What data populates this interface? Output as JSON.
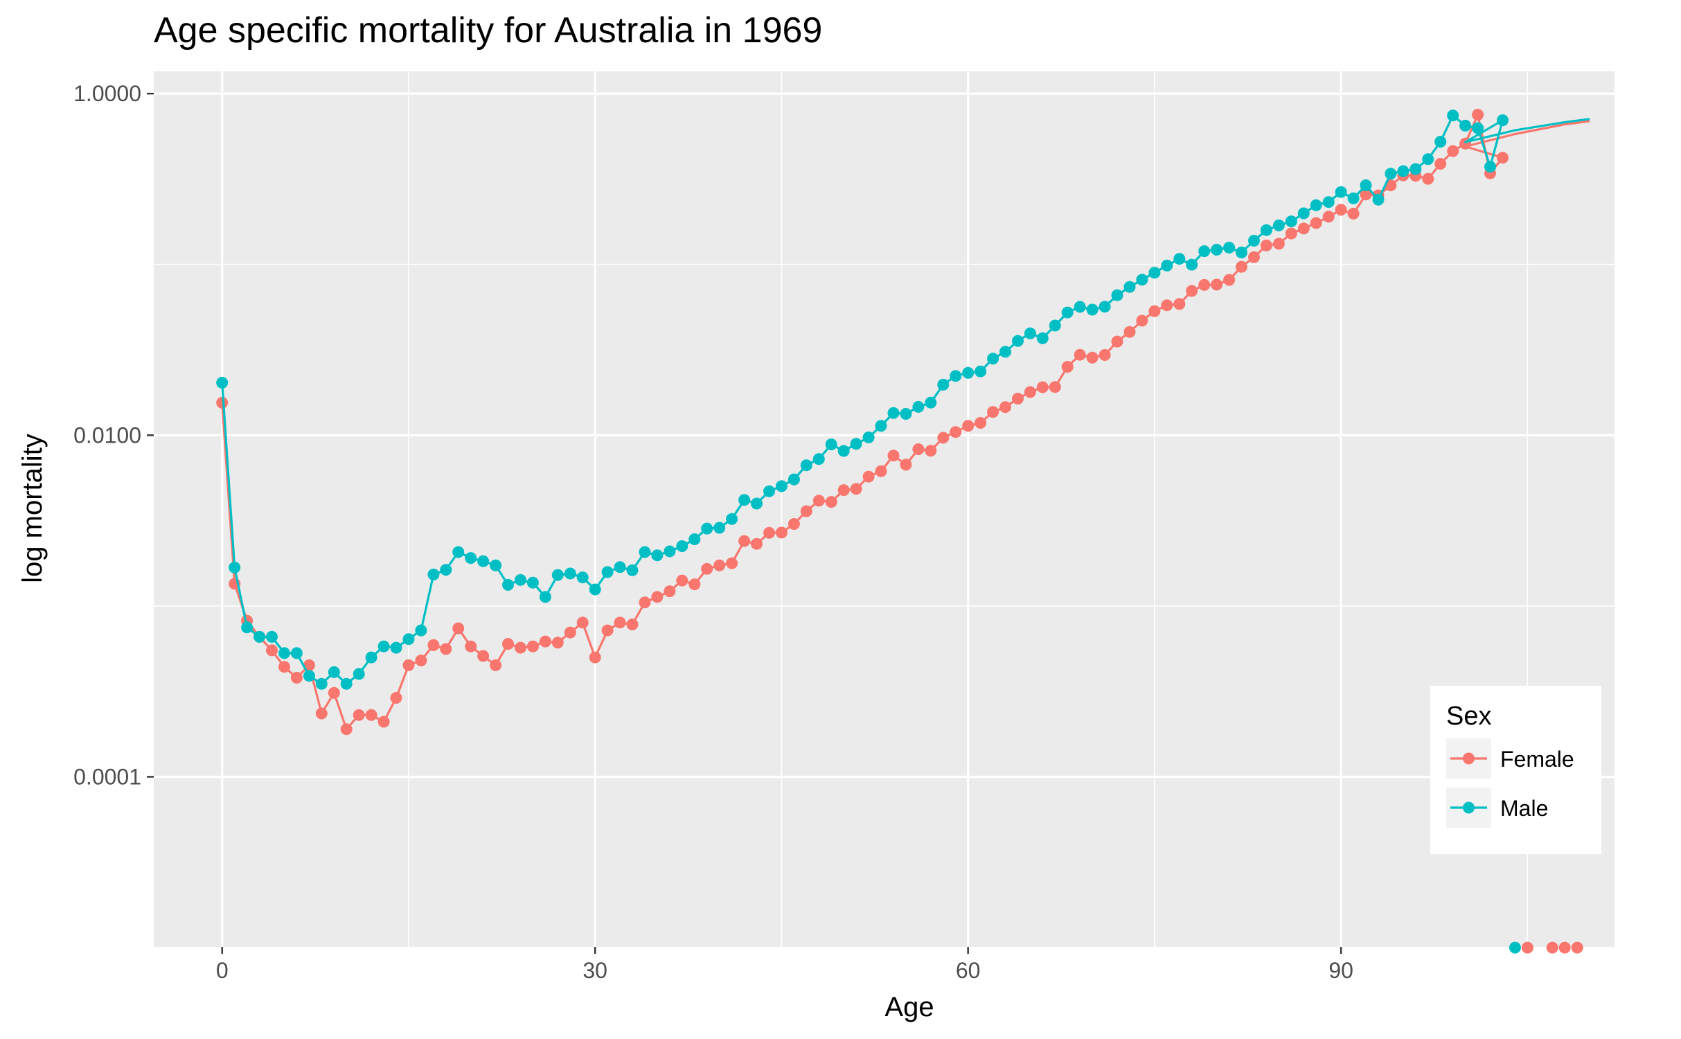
{
  "chart_data": {
    "type": "line",
    "title": "Age specific mortality for Australia in 1969",
    "xlabel": "Age",
    "ylabel": "log mortality",
    "xlim": [
      -5.5,
      112
    ],
    "ylim": [
      1.01e-05,
      1.35
    ],
    "y_scale": "log10",
    "x_ticks": [
      0,
      30,
      60,
      90
    ],
    "x_tick_labels": [
      "0",
      "30",
      "60",
      "90"
    ],
    "x_minor_ticks": [
      15,
      45,
      75,
      105
    ],
    "y_ticks": [
      1,
      0.01,
      0.0001
    ],
    "y_tick_labels": [
      "1.0000",
      "0.0100",
      "0.0001"
    ],
    "y_minor_ticks": [
      0.1,
      0.001,
      1e-05
    ],
    "grid": true,
    "legend": {
      "title": "Sex",
      "position": "bottom-right"
    },
    "series": [
      {
        "name": "Female",
        "color": "#F8766D",
        "points_y": [
          0.0155,
          0.00135,
          0.00082,
          0.00066,
          0.00055,
          0.00044,
          0.00038,
          0.00045,
          0.000235,
          0.00031,
          0.00019,
          0.00023,
          0.00023,
          0.00021,
          0.00029,
          0.00045,
          0.00048,
          0.00059,
          0.00056,
          0.00074,
          0.00058,
          0.00051,
          0.00045,
          0.0006,
          0.00057,
          0.00058,
          0.00062,
          0.00061,
          0.0007,
          0.0008,
          0.0005,
          0.00072,
          0.0008,
          0.00078,
          0.00105,
          0.00113,
          0.00122,
          0.00141,
          0.00134,
          0.00165,
          0.00173,
          0.00178,
          0.0024,
          0.00231,
          0.00268,
          0.00269,
          0.00302,
          0.00359,
          0.00414,
          0.00407,
          0.00477,
          0.00485,
          0.00572,
          0.00616,
          0.0076,
          0.00672,
          0.00828,
          0.00811,
          0.00966,
          0.01044,
          0.01134,
          0.01181,
          0.01369,
          0.01461,
          0.01637,
          0.0179,
          0.0191,
          0.01916,
          0.02513,
          0.02958,
          0.02846,
          0.02949,
          0.03534,
          0.04024,
          0.04683,
          0.05324,
          0.05767,
          0.05863,
          0.06998,
          0.07578,
          0.07614,
          0.08115,
          0.09679,
          0.11027,
          0.12911,
          0.13207,
          0.15163,
          0.16227,
          0.17467,
          0.19016,
          0.20877,
          0.19838,
          0.25659,
          0.25349,
          0.29037,
          0.33202,
          0.33008,
          0.31686,
          0.38799,
          0.46082,
          0.50952,
          0.75225,
          0.34142,
          0.42151
        ],
        "outliers": [
          {
            "x": 105,
            "y": 1e-05
          },
          {
            "x": 107,
            "y": 1e-05
          },
          {
            "x": 108,
            "y": 1e-05
          },
          {
            "x": 109,
            "y": 1e-05
          }
        ],
        "fit_tail": [
          {
            "x": 100,
            "y": 0.49
          },
          {
            "x": 104,
            "y": 0.58
          },
          {
            "x": 108,
            "y": 0.66
          },
          {
            "x": 110,
            "y": 0.69
          }
        ]
      },
      {
        "name": "Male",
        "color": "#00BFC4",
        "points_y": [
          0.0203,
          0.00168,
          0.00075,
          0.00066,
          0.00066,
          0.00053,
          0.00053,
          0.00039,
          0.00035,
          0.00041,
          0.00035,
          0.0004,
          0.0005,
          0.00058,
          0.00057,
          0.00064,
          0.00072,
          0.00153,
          0.00163,
          0.00207,
          0.00191,
          0.00183,
          0.00173,
          0.00133,
          0.00142,
          0.00137,
          0.00113,
          0.00152,
          0.00155,
          0.00147,
          0.00125,
          0.00158,
          0.00169,
          0.00162,
          0.00207,
          0.00198,
          0.00209,
          0.00224,
          0.00246,
          0.00284,
          0.00287,
          0.00323,
          0.00418,
          0.00398,
          0.0047,
          0.00503,
          0.00551,
          0.00667,
          0.00725,
          0.00883,
          0.00809,
          0.0089,
          0.00971,
          0.01134,
          0.01349,
          0.01333,
          0.01465,
          0.01552,
          0.01975,
          0.02225,
          0.02318,
          0.02364,
          0.02807,
          0.03078,
          0.03565,
          0.03947,
          0.03694,
          0.04385,
          0.05233,
          0.05644,
          0.05438,
          0.05654,
          0.06603,
          0.07382,
          0.08136,
          0.08938,
          0.09841,
          0.10781,
          0.09961,
          0.11954,
          0.12192,
          0.12541,
          0.11745,
          0.13769,
          0.15886,
          0.16919,
          0.17867,
          0.19908,
          0.22211,
          0.23183,
          0.26502,
          0.2436,
          0.29064,
          0.23926,
          0.33955,
          0.35157,
          0.36137,
          0.41316,
          0.52289,
          0.74458,
          0.64908,
          0.62795,
          0.37316,
          0.69858
        ],
        "outliers": [
          {
            "x": 104,
            "y": 1e-05
          }
        ],
        "fit_tail": [
          {
            "x": 100,
            "y": 0.52
          },
          {
            "x": 104,
            "y": 0.61
          },
          {
            "x": 108,
            "y": 0.68
          },
          {
            "x": 110,
            "y": 0.71
          }
        ]
      }
    ]
  }
}
